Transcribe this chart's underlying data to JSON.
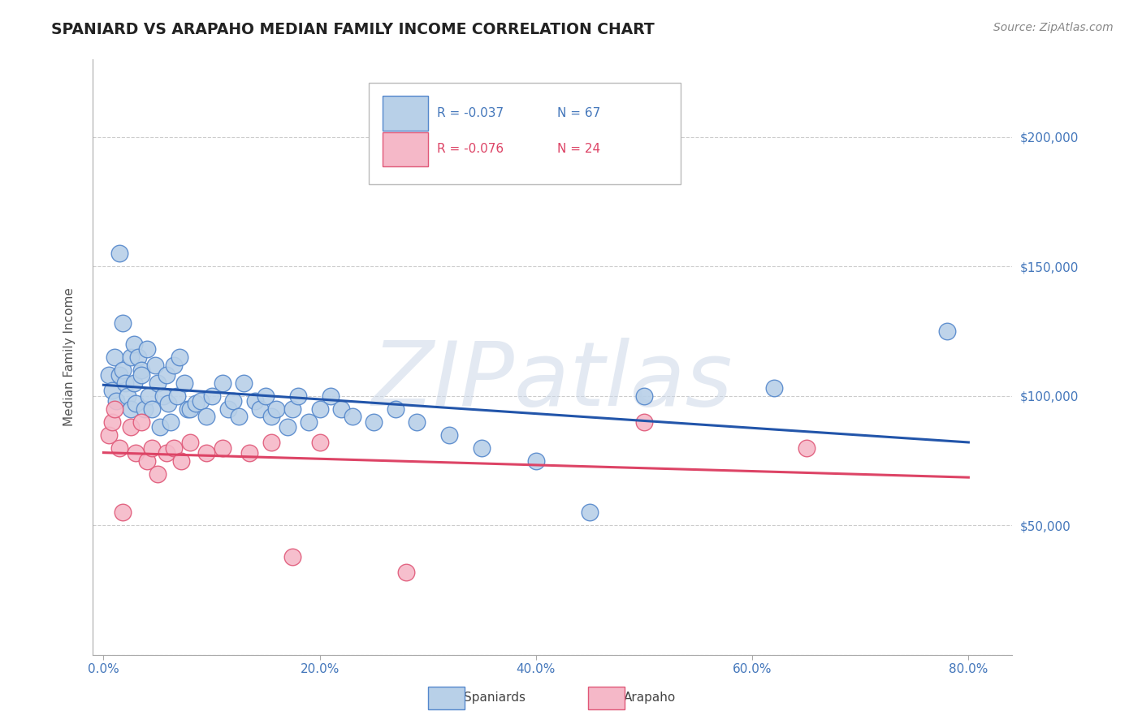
{
  "title": "SPANIARD VS ARAPAHO MEDIAN FAMILY INCOME CORRELATION CHART",
  "source": "Source: ZipAtlas.com",
  "ylabel": "Median Family Income",
  "xlim": [
    -0.01,
    0.84
  ],
  "ylim": [
    0,
    230000
  ],
  "xticks": [
    0.0,
    0.2,
    0.4,
    0.6,
    0.8
  ],
  "xtick_labels": [
    "0.0%",
    "20.0%",
    "40.0%",
    "60.0%",
    "80.0%"
  ],
  "yticks": [
    0,
    50000,
    100000,
    150000,
    200000
  ],
  "ytick_labels": [
    "",
    "$50,000",
    "$100,000",
    "$150,000",
    "$200,000"
  ],
  "grid_color": "#cccccc",
  "background_color": "#ffffff",
  "spaniard_color": "#b8d0e8",
  "arapaho_color": "#f5b8c8",
  "spaniard_edge_color": "#5588cc",
  "arapaho_edge_color": "#e05878",
  "spaniard_line_color": "#2255aa",
  "arapaho_line_color": "#dd4466",
  "legend_r_spaniard": "R = -0.037",
  "legend_n_spaniard": "N = 67",
  "legend_r_arapaho": "R = -0.076",
  "legend_n_arapaho": "N = 24",
  "watermark": "ZIPatlas",
  "spaniard_x": [
    0.005,
    0.008,
    0.01,
    0.012,
    0.015,
    0.015,
    0.018,
    0.018,
    0.02,
    0.022,
    0.025,
    0.025,
    0.028,
    0.028,
    0.03,
    0.032,
    0.035,
    0.035,
    0.038,
    0.04,
    0.042,
    0.045,
    0.048,
    0.05,
    0.052,
    0.055,
    0.058,
    0.06,
    0.062,
    0.065,
    0.068,
    0.07,
    0.075,
    0.078,
    0.08,
    0.085,
    0.09,
    0.095,
    0.1,
    0.11,
    0.115,
    0.12,
    0.125,
    0.13,
    0.14,
    0.145,
    0.15,
    0.155,
    0.16,
    0.17,
    0.175,
    0.18,
    0.19,
    0.2,
    0.21,
    0.22,
    0.23,
    0.25,
    0.27,
    0.29,
    0.32,
    0.35,
    0.4,
    0.45,
    0.5,
    0.62,
    0.78
  ],
  "spaniard_y": [
    108000,
    102000,
    115000,
    98000,
    155000,
    108000,
    110000,
    128000,
    105000,
    100000,
    95000,
    115000,
    120000,
    105000,
    97000,
    115000,
    110000,
    108000,
    95000,
    118000,
    100000,
    95000,
    112000,
    105000,
    88000,
    100000,
    108000,
    97000,
    90000,
    112000,
    100000,
    115000,
    105000,
    95000,
    95000,
    97000,
    98000,
    92000,
    100000,
    105000,
    95000,
    98000,
    92000,
    105000,
    98000,
    95000,
    100000,
    92000,
    95000,
    88000,
    95000,
    100000,
    90000,
    95000,
    100000,
    95000,
    92000,
    90000,
    95000,
    90000,
    85000,
    80000,
    75000,
    55000,
    100000,
    103000,
    125000
  ],
  "arapaho_x": [
    0.005,
    0.008,
    0.01,
    0.015,
    0.018,
    0.025,
    0.03,
    0.035,
    0.04,
    0.045,
    0.05,
    0.058,
    0.065,
    0.072,
    0.08,
    0.095,
    0.11,
    0.135,
    0.155,
    0.175,
    0.2,
    0.28,
    0.5,
    0.65
  ],
  "arapaho_y": [
    85000,
    90000,
    95000,
    80000,
    55000,
    88000,
    78000,
    90000,
    75000,
    80000,
    70000,
    78000,
    80000,
    75000,
    82000,
    78000,
    80000,
    78000,
    82000,
    38000,
    82000,
    32000,
    90000,
    80000
  ]
}
